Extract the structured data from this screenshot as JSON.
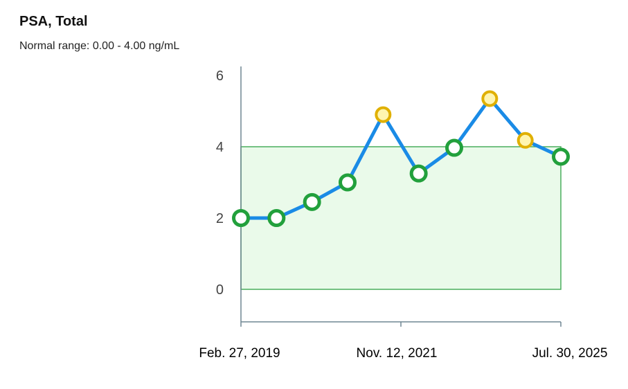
{
  "header": {
    "title": "PSA, Total",
    "subtitle": "Normal range: 0.00 - 4.00 ng/mL"
  },
  "chart_data": {
    "type": "line",
    "title": "PSA, Total",
    "subtitle": "Normal range: 0.00 - 4.00 ng/mL",
    "xlabel": "",
    "ylabel": "",
    "ylim": [
      -0.9,
      6.2
    ],
    "y_ticks": [
      0,
      2,
      4,
      6
    ],
    "x_tick_labels": [
      "Feb. 27, 2019",
      "Nov. 12, 2021",
      "Jul. 30, 2025"
    ],
    "normal_range": [
      0.0,
      4.0
    ],
    "grid": false,
    "series": [
      {
        "values": [
          2.0,
          2.0,
          2.45,
          3.0,
          4.9,
          3.25,
          3.97,
          5.35,
          4.18,
          3.72
        ],
        "status": [
          "normal",
          "normal",
          "normal",
          "normal",
          "high",
          "normal",
          "normal",
          "high",
          "high",
          "normal"
        ]
      }
    ],
    "colors": {
      "line": "#1a8be6",
      "normal_marker": "#22a03c",
      "high_marker": "#e0b000",
      "high_marker_fill": "#fff5b0",
      "band_fill": "#eafaea",
      "band_stroke": "#49ad5c",
      "axis": "#6f8692"
    }
  }
}
